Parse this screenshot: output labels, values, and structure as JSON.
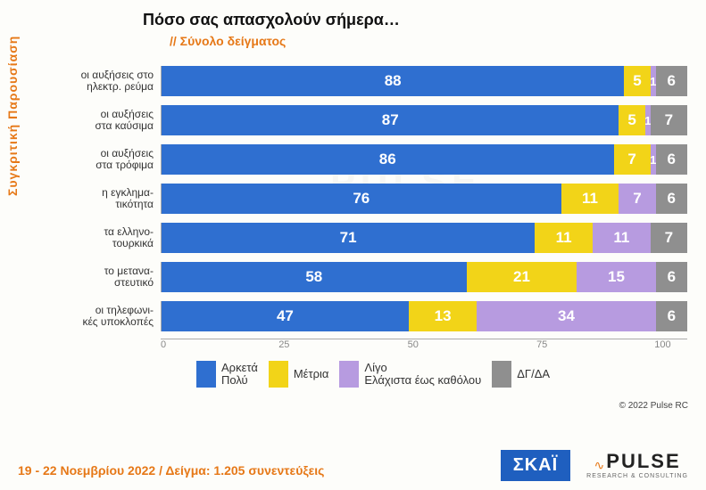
{
  "title": "Πόσο σας απασχολούν σήμερα…",
  "subtitle": "// Σύνολο δείγματος",
  "sidelabel": "Συγκριτική  Παρουσίαση",
  "colors": {
    "c1": "#2f6fd0",
    "c2": "#f2d418",
    "c3": "#b79be0",
    "c4": "#8f8f8f"
  },
  "legend": [
    {
      "key": "c1",
      "label": "Αρκετά\nΠολύ"
    },
    {
      "key": "c2",
      "label": "Μέτρια"
    },
    {
      "key": "c3",
      "label": "Λίγο\nΕλάχιστα έως καθόλου"
    },
    {
      "key": "c4",
      "label": "ΔΓ/ΔΑ"
    }
  ],
  "axis": {
    "min": 0,
    "max": 100,
    "ticks": [
      0,
      25,
      50,
      75,
      100
    ]
  },
  "rows": [
    {
      "label": "οι αυξήσεις στο\nηλεκτρ. ρεύμα",
      "vals": [
        88,
        5,
        1,
        6
      ]
    },
    {
      "label": "οι αυξήσεις\nστα καύσιμα",
      "vals": [
        87,
        5,
        1,
        7
      ]
    },
    {
      "label": "οι αυξήσεις\nστα τρόφιμα",
      "vals": [
        86,
        7,
        1,
        6
      ]
    },
    {
      "label": "η εγκλημα-\nτικότητα",
      "vals": [
        76,
        11,
        7,
        6
      ]
    },
    {
      "label": "τα ελληνο-\nτουρκικά",
      "vals": [
        71,
        11,
        11,
        7
      ]
    },
    {
      "label": "το μετανα-\nστευτικό",
      "vals": [
        58,
        21,
        15,
        6
      ]
    },
    {
      "label": "οι τηλεφωνι-\nκές υποκλοπές",
      "vals": [
        47,
        13,
        34,
        6
      ]
    }
  ],
  "copyright": "© 2022 Pulse RC",
  "footer": "19 - 22  Νοεμβρίου  2022  /  Δείγμα:  1.205 συνεντεύξεις",
  "logos": {
    "skai": "ΣΚΑΪ",
    "pulse": "PULSE",
    "pulse_sub": "RESEARCH & CONSULTING"
  }
}
